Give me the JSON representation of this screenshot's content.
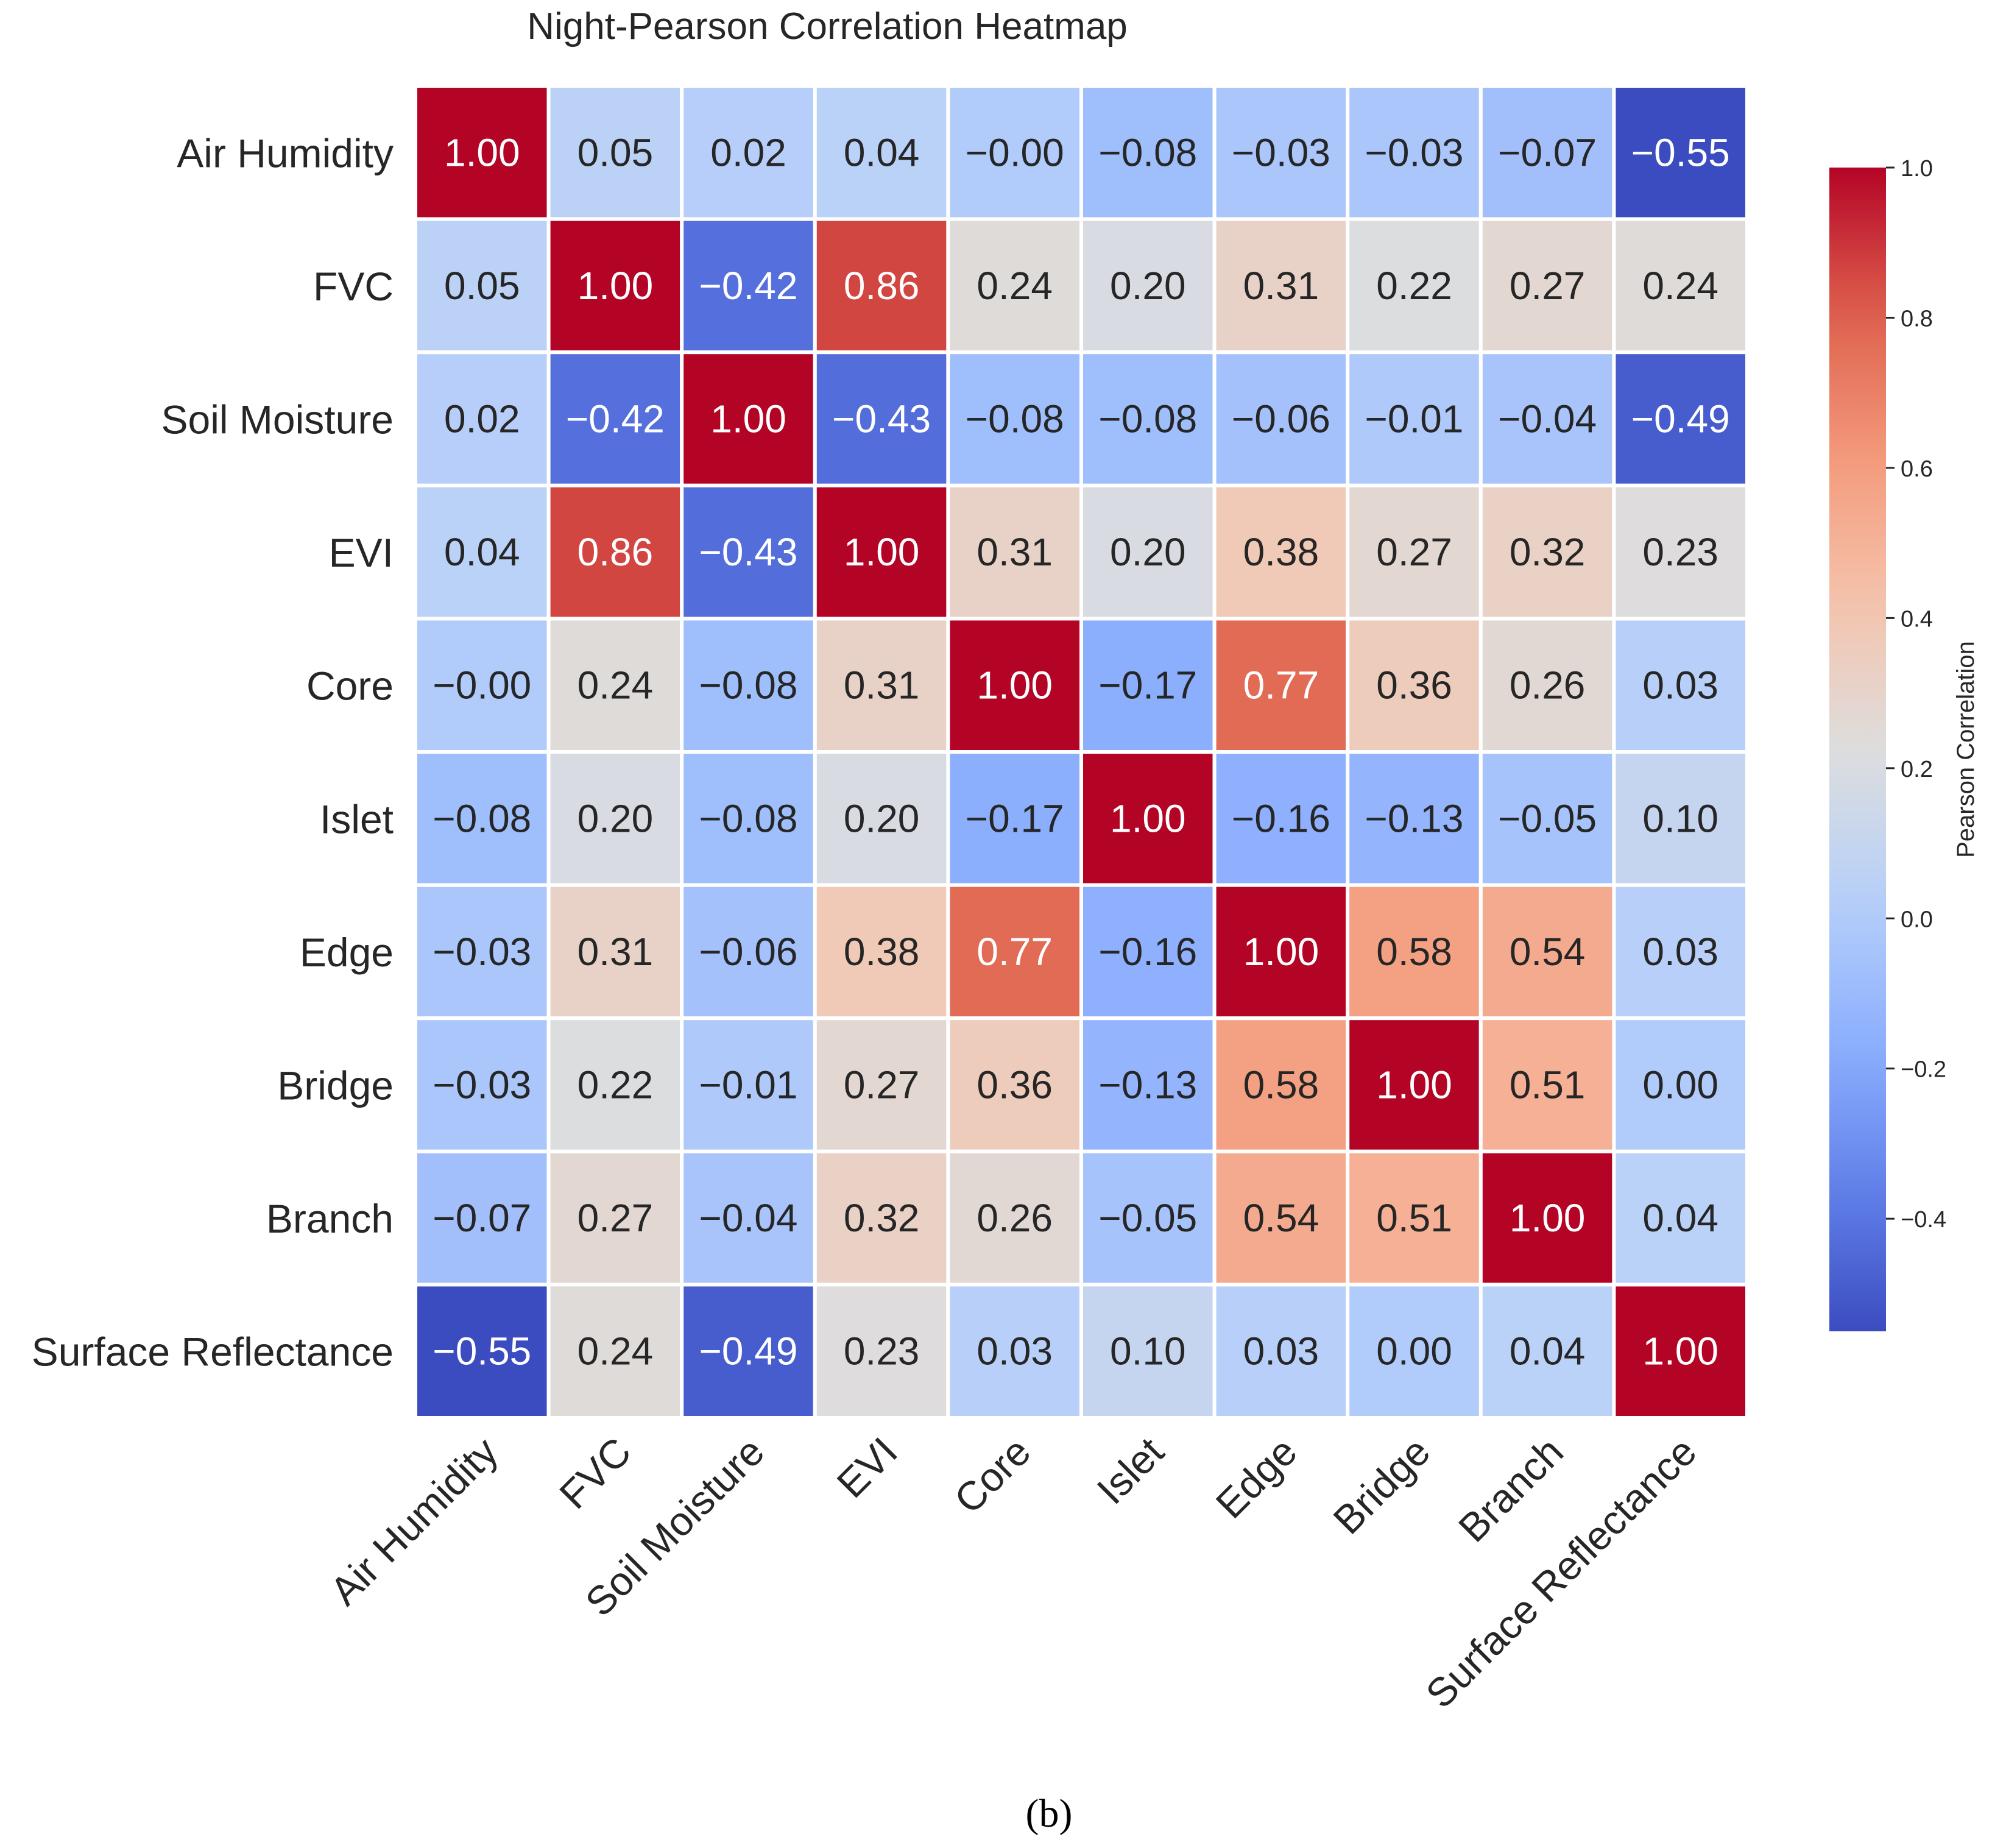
{
  "chart_data": {
    "type": "heatmap",
    "title": "Night-Pearson Correlation Heatmap",
    "row_labels": [
      "Air Humidity",
      "FVC",
      "Soil Moisture",
      "EVI",
      "Core",
      "Islet",
      "Edge",
      "Bridge",
      "Branch",
      "Surface Reflectance"
    ],
    "col_labels": [
      "Air Humidity",
      "FVC",
      "Soil Moisture",
      "EVI",
      "Core",
      "Islet",
      "Edge",
      "Bridge",
      "Branch",
      "Surface Reflectance"
    ],
    "values": [
      [
        1.0,
        0.05,
        0.02,
        0.04,
        -0.0,
        -0.08,
        -0.03,
        -0.03,
        -0.07,
        -0.55
      ],
      [
        0.05,
        1.0,
        -0.42,
        0.86,
        0.24,
        0.2,
        0.31,
        0.22,
        0.27,
        0.24
      ],
      [
        0.02,
        -0.42,
        1.0,
        -0.43,
        -0.08,
        -0.08,
        -0.06,
        -0.01,
        -0.04,
        -0.49
      ],
      [
        0.04,
        0.86,
        -0.43,
        1.0,
        0.31,
        0.2,
        0.38,
        0.27,
        0.32,
        0.23
      ],
      [
        -0.0,
        0.24,
        -0.08,
        0.31,
        1.0,
        -0.17,
        0.77,
        0.36,
        0.26,
        0.03
      ],
      [
        -0.08,
        0.2,
        -0.08,
        0.2,
        -0.17,
        1.0,
        -0.16,
        -0.13,
        -0.05,
        0.1
      ],
      [
        -0.03,
        0.31,
        -0.06,
        0.38,
        0.77,
        -0.16,
        1.0,
        0.58,
        0.54,
        0.03
      ],
      [
        -0.03,
        0.22,
        -0.01,
        0.27,
        0.36,
        -0.13,
        0.58,
        1.0,
        0.51,
        0.0
      ],
      [
        -0.07,
        0.27,
        -0.04,
        0.32,
        0.26,
        -0.05,
        0.54,
        0.51,
        1.0,
        0.04
      ],
      [
        -0.55,
        0.24,
        -0.49,
        0.23,
        0.03,
        0.1,
        0.03,
        0.0,
        0.04,
        1.0
      ]
    ],
    "color_range": [
      -0.55,
      1.0
    ],
    "colormap": "coolwarm",
    "colorbar": {
      "label": "Pearson Correlation",
      "ticks": [
        1.0,
        0.8,
        0.6,
        0.4,
        0.2,
        0.0,
        -0.2,
        -0.4
      ],
      "tick_labels": [
        "1.0",
        "0.8",
        "0.6",
        "0.4",
        "0.2",
        "0.0",
        "−0.2",
        "−0.4"
      ]
    },
    "annotation_format": "2f",
    "legend_position": "right"
  },
  "caption": "(b)"
}
